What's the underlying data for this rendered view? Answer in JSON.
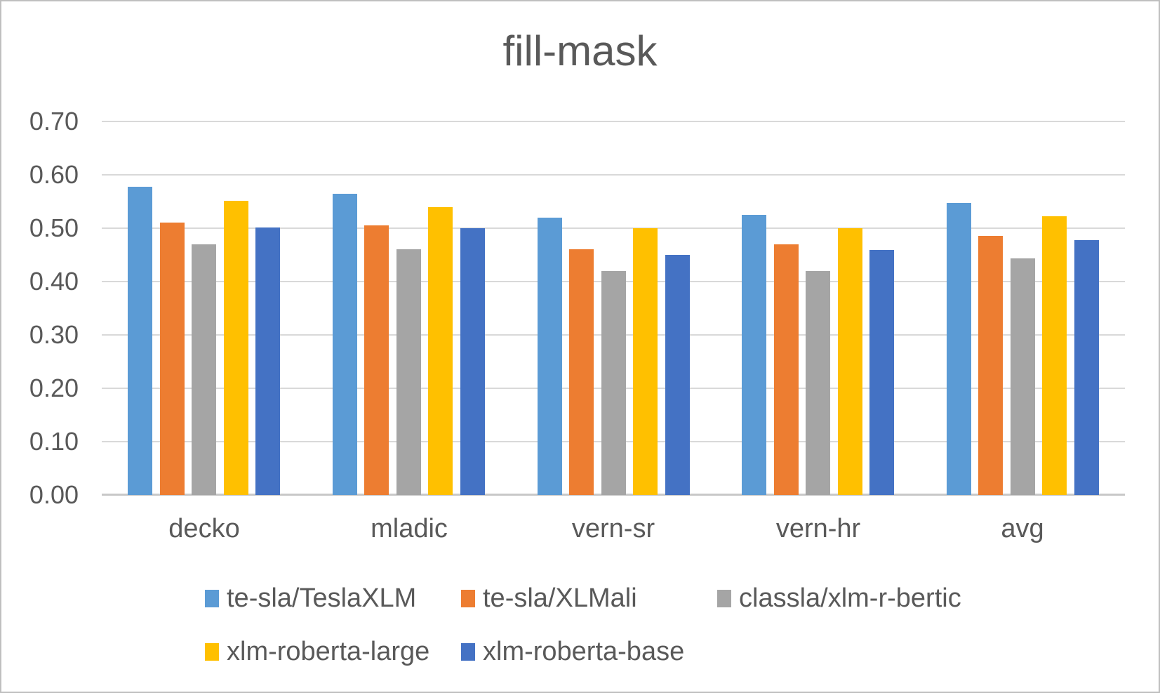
{
  "chart_data": {
    "type": "bar",
    "title": "fill-mask",
    "categories": [
      "decko",
      "mladic",
      "vern-sr",
      "vern-hr",
      "avg"
    ],
    "series": [
      {
        "name": "te-sla/TeslaXLM",
        "color": "#5B9BD5",
        "values": [
          0.578,
          0.565,
          0.52,
          0.525,
          0.547
        ]
      },
      {
        "name": "te-sla/XLMali",
        "color": "#ED7D31",
        "values": [
          0.51,
          0.505,
          0.46,
          0.47,
          0.486
        ]
      },
      {
        "name": "classla/xlm-r-bertic",
        "color": "#A5A5A5",
        "values": [
          0.47,
          0.46,
          0.42,
          0.42,
          0.443
        ]
      },
      {
        "name": "xlm-roberta-large",
        "color": "#FFC000",
        "values": [
          0.551,
          0.54,
          0.5,
          0.5,
          0.523
        ]
      },
      {
        "name": "xlm-roberta-base",
        "color": "#4472C4",
        "values": [
          0.501,
          0.5,
          0.45,
          0.459,
          0.478
        ]
      }
    ],
    "xlabel": "",
    "ylabel": "",
    "ylim": [
      0.0,
      0.7
    ],
    "ytick_step": 0.1,
    "ytick_labels": [
      "0.00",
      "0.10",
      "0.20",
      "0.30",
      "0.40",
      "0.50",
      "0.60",
      "0.70"
    ],
    "grid": "horizontal",
    "legend_position": "bottom"
  },
  "colors": {
    "text": "#595959",
    "gridline": "#D9D9D9",
    "baseline": "#C8C8C8",
    "border": "#BFBFBF",
    "background": "#FFFFFF"
  }
}
